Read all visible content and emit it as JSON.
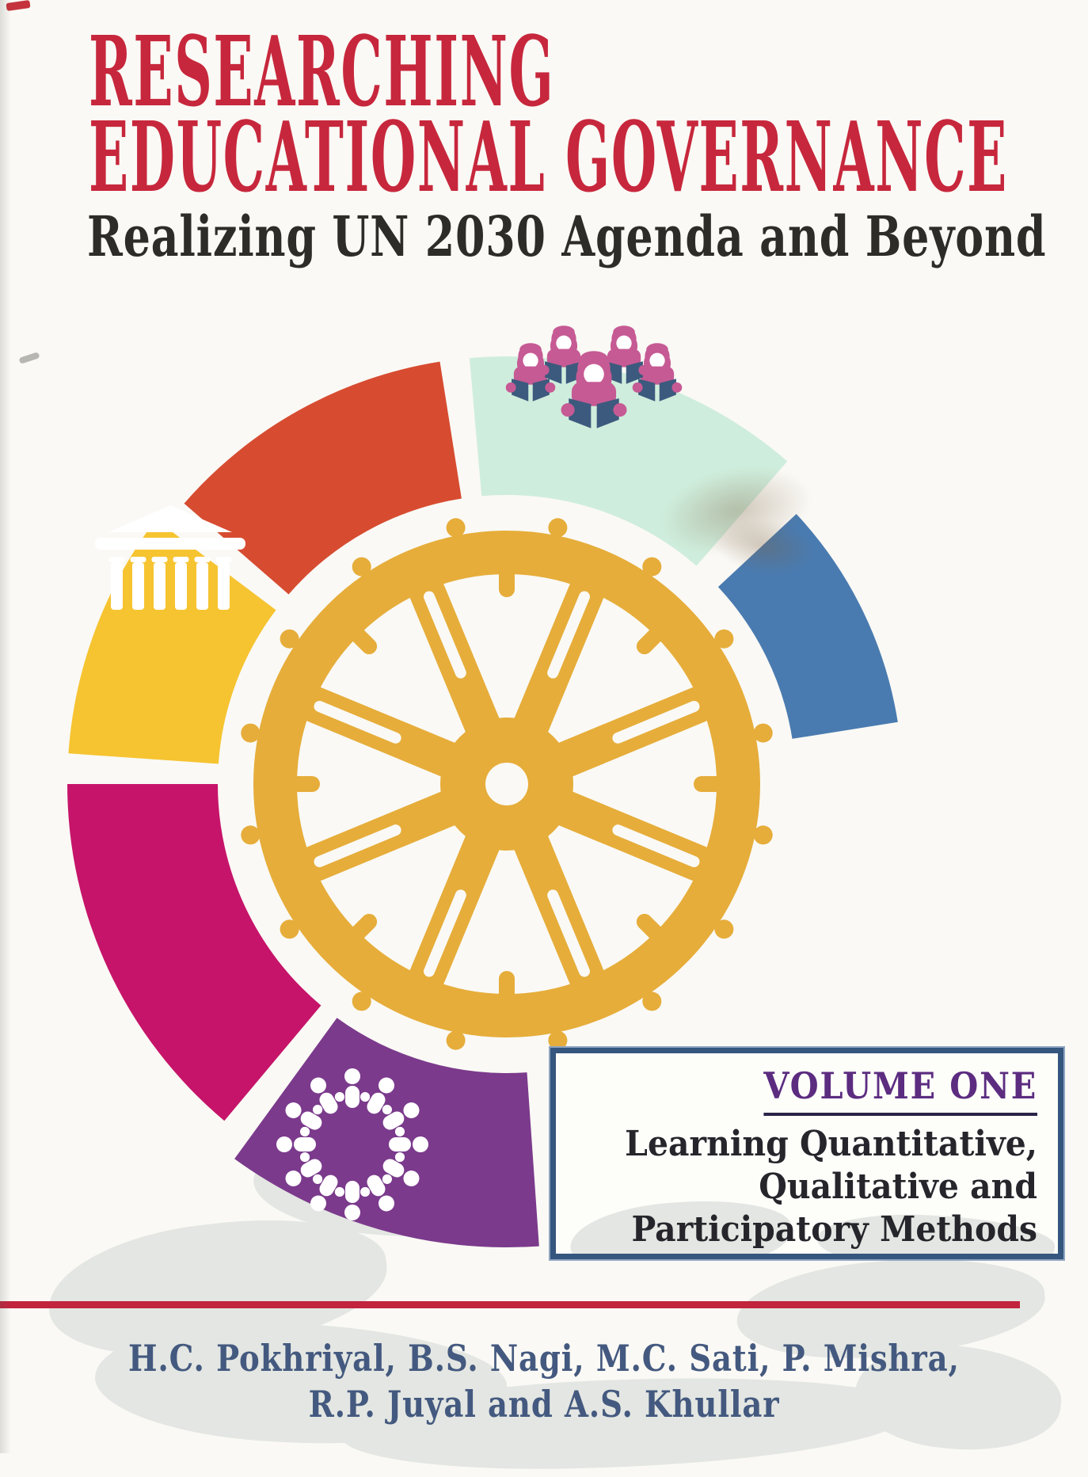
{
  "cover": {
    "title_line1": "RESEARCHING",
    "title_line2": "EDUCATIONAL GOVERNANCE",
    "subtitle": "Realizing UN 2030 Agenda and Beyond",
    "volume": {
      "label": "VOLUME ONE",
      "line1": "Learning Quantitative,",
      "line2": "Qualitative and",
      "line3": "Participatory Methods"
    },
    "authors_line1": "H.C. Pokhriyal, B.S. Nagi, M.C. Sati, P. Mishra,",
    "authors_line2": "R.P. Juyal and A.S. Khullar",
    "colors": {
      "title_red": "#c7273c",
      "subtitle_black": "#2e2c29",
      "segment_red": "#d74c31",
      "segment_mint": "#cfeddc",
      "segment_blue": "#4a7bb0",
      "segment_yellow": "#f6c431",
      "segment_magenta": "#c6146a",
      "segment_purple": "#7b3a8c",
      "wheel_gold": "#e6ad3a",
      "reader_pink": "#c65a94",
      "book_navy": "#3c5a7d",
      "icon_white": "#ffffff",
      "box_border_navy": "#35567e",
      "volume_purple": "#5c2c80",
      "volume_text": "#26252b",
      "rule_red": "#c2233d",
      "authors_blue": "#44597f",
      "background": "#faf9f5"
    },
    "ring_segments": [
      {
        "name": "red",
        "color": "#d74c31",
        "icon": null
      },
      {
        "name": "mint",
        "color": "#cfeddc",
        "icon": "students-reading-icon"
      },
      {
        "name": "blue",
        "color": "#4a7bb0",
        "icon": null
      },
      {
        "name": "yellow",
        "color": "#f6c431",
        "icon": "institution-icon"
      },
      {
        "name": "magenta",
        "color": "#c6146a",
        "icon": null
      },
      {
        "name": "purple",
        "color": "#7b3a8c",
        "icon": "community-circle-icon"
      }
    ]
  }
}
